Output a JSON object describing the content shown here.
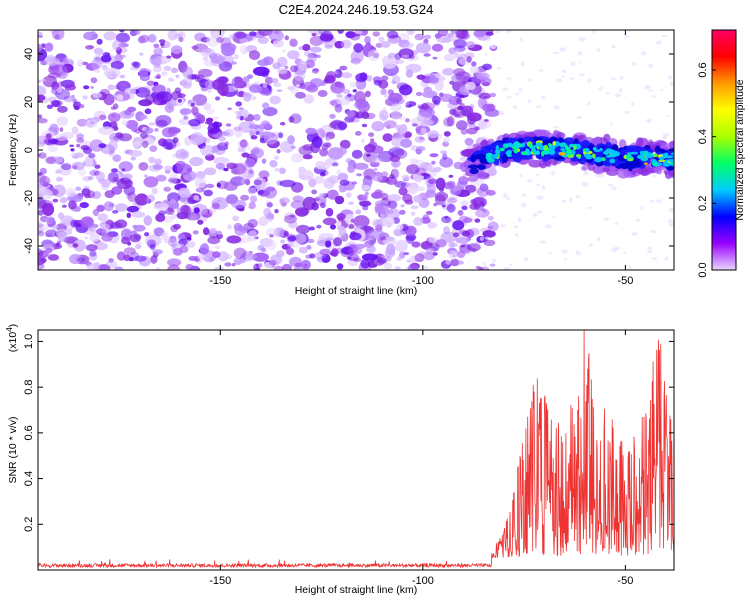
{
  "figure_title": "C2E4.2024.246.19.53.G24",
  "chart_data": [
    {
      "type": "heatmap",
      "xlabel": "Height of straight line (km)",
      "ylabel": "Frequency (Hz)",
      "xlim": [
        -195,
        -38
      ],
      "ylim": [
        -50,
        50
      ],
      "xticks": [
        -150,
        -100,
        -50
      ],
      "yticks": [
        -40,
        -20,
        0,
        20,
        40
      ],
      "grid": false,
      "noise_region_x": [
        -195,
        -85
      ],
      "signal_onset_x": -85,
      "signal_track": [
        {
          "x": -90,
          "y": -6
        },
        {
          "x": -85,
          "y": -4
        },
        {
          "x": -80,
          "y": 0
        },
        {
          "x": -70,
          "y": 1
        },
        {
          "x": -60,
          "y": -1
        },
        {
          "x": -50,
          "y": -3
        },
        {
          "x": -40,
          "y": -4
        }
      ],
      "colorbar": {
        "label": "Normalized spectral amplitude",
        "range": [
          0.0,
          0.72
        ],
        "ticks": [
          0.0,
          0.2,
          0.4,
          0.6
        ],
        "tick_labels": [
          "0.0",
          "0.2",
          "0.4",
          "0.6"
        ],
        "colors": [
          "#e8d8ff",
          "#9900ff",
          "#0000ff",
          "#00ccff",
          "#00ff66",
          "#aaff00",
          "#ffff00",
          "#ff9900",
          "#ff0000",
          "#ff0066"
        ]
      }
    },
    {
      "type": "line",
      "xlabel": "Height of straight line (km)",
      "ylabel": "SNR (10 * v/v)",
      "scale_label": "(x10",
      "scale_exp": "4",
      "scale_close": ")",
      "xlim": [
        -195,
        -38
      ],
      "ylim": [
        0,
        1.05
      ],
      "xticks": [
        -150,
        -100,
        -50
      ],
      "yticks": [
        0.2,
        0.4,
        0.6,
        0.8,
        1.0
      ],
      "ytick_labels": [
        "0.2",
        "0.4",
        "0.6",
        "0.8",
        "1.0"
      ],
      "grid": false,
      "line_color": "#ee3333",
      "noise_floor": 0.02,
      "noise_region_x": [
        -195,
        -83
      ],
      "envelope": [
        {
          "x": -83,
          "y": 0.04
        },
        {
          "x": -80,
          "y": 0.12
        },
        {
          "x": -78,
          "y": 0.28
        },
        {
          "x": -75,
          "y": 0.55
        },
        {
          "x": -72,
          "y": 0.84
        },
        {
          "x": -68,
          "y": 0.62
        },
        {
          "x": -65,
          "y": 0.58
        },
        {
          "x": -62,
          "y": 0.78
        },
        {
          "x": -60,
          "y": 1.05
        },
        {
          "x": -57,
          "y": 0.65
        },
        {
          "x": -54,
          "y": 0.66
        },
        {
          "x": -50,
          "y": 0.48
        },
        {
          "x": -47,
          "y": 0.58
        },
        {
          "x": -44,
          "y": 0.72
        },
        {
          "x": -43,
          "y": 0.98
        },
        {
          "x": -41,
          "y": 0.96
        },
        {
          "x": -38,
          "y": 0.5
        }
      ]
    }
  ]
}
